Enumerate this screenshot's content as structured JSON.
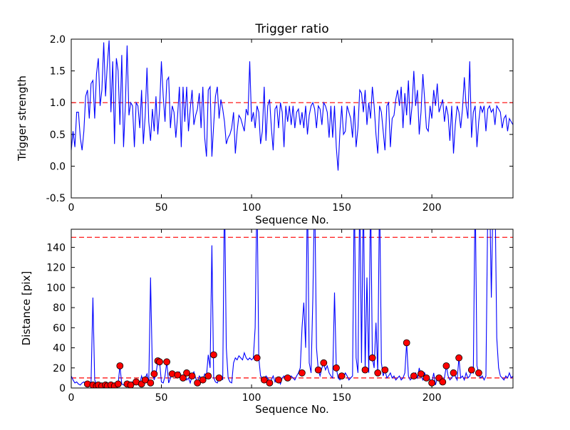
{
  "figure": {
    "background": "#ffffff",
    "frame_color": "#000000"
  },
  "chart_data": [
    {
      "type": "line",
      "title": "Trigger ratio",
      "xlabel": "Sequence No.",
      "ylabel": "Trigger strength",
      "xlim": [
        0,
        245
      ],
      "ylim": [
        -0.5,
        2.0
      ],
      "xticks": [
        0,
        50,
        100,
        150,
        200
      ],
      "xticklabels": [
        "0",
        "50",
        "100",
        "150",
        "200"
      ],
      "yticks": [
        -0.5,
        0.0,
        0.5,
        1.0,
        1.5,
        2.0
      ],
      "yticklabels": [
        "-0.5",
        "0.0",
        "0.5",
        "1.0",
        "1.5",
        "2.0"
      ],
      "grid": false,
      "legend": "none",
      "thresholds": [
        1.0
      ],
      "threshold_color": "#ff0000",
      "series": [
        {
          "name": "trigger-strength",
          "color": "#0000ff",
          "values": [
            0.25,
            0.55,
            0.3,
            0.85,
            0.85,
            0.45,
            0.25,
            0.55,
            1.1,
            1.2,
            0.75,
            1.3,
            1.35,
            0.75,
            1.45,
            1.7,
            0.95,
            1.2,
            1.95,
            1.1,
            1.6,
            1.98,
            0.85,
            1.65,
            0.35,
            1.7,
            1.5,
            0.65,
            1.75,
            0.3,
            0.95,
            1.9,
            0.8,
            1.0,
            0.95,
            0.3,
            1.0,
            0.95,
            0.6,
            1.2,
            0.35,
            0.8,
            1.55,
            0.7,
            0.4,
            0.9,
            0.55,
            1.1,
            0.5,
            0.9,
            1.65,
            1.1,
            0.7,
            1.35,
            1.4,
            0.6,
            0.95,
            0.85,
            0.45,
            0.8,
            1.25,
            0.3,
            1.25,
            0.7,
            1.25,
            0.55,
            0.9,
            1.2,
            0.65,
            0.8,
            0.9,
            1.15,
            0.6,
            1.25,
            0.45,
            0.15,
            1.2,
            1.25,
            0.15,
            0.65,
            1.1,
            1.25,
            0.75,
            1.05,
            0.9,
            0.7,
            0.35,
            0.45,
            0.5,
            0.6,
            0.85,
            0.2,
            0.55,
            0.8,
            0.75,
            0.65,
            0.55,
            0.9,
            0.8,
            1.65,
            0.7,
            0.85,
            0.6,
            0.95,
            0.85,
            0.35,
            0.55,
            1.25,
            0.4,
            0.95,
            1.05,
            0.6,
            0.25,
            0.9,
            0.95,
            0.6,
            1.0,
            0.85,
            0.3,
            0.95,
            0.7,
            0.95,
            0.65,
            0.95,
            0.6,
            0.85,
            0.9,
            0.65,
            0.85,
            0.6,
            0.95,
            0.5,
            0.8,
            0.95,
            1.0,
            0.9,
            0.6,
            0.95,
            0.9,
            0.65,
            1.0,
            0.95,
            0.85,
            0.45,
            0.95,
            0.45,
            0.95,
            0.3,
            -0.07,
            0.55,
            0.95,
            0.5,
            0.55,
            0.95,
            0.85,
            0.75,
            0.45,
            0.95,
            0.3,
            0.6,
            1.2,
            1.15,
            0.85,
            1.2,
            0.65,
            1.0,
            0.75,
            1.25,
            0.95,
            0.5,
            0.2,
            0.95,
            0.85,
            0.55,
            0.25,
            0.95,
            1.0,
            0.3,
            0.75,
            0.8,
            1.05,
            1.2,
            0.95,
            1.25,
            0.6,
            1.15,
            0.8,
            1.35,
            0.65,
            0.95,
            1.5,
            0.95,
            1.2,
            0.5,
            0.85,
            1.45,
            1.05,
            0.6,
            0.55,
            0.95,
            0.75,
            1.2,
            0.95,
            1.3,
            0.85,
            0.95,
            1.05,
            0.7,
            0.95,
            0.8,
            0.4,
            0.95,
            0.2,
            0.65,
            0.95,
            0.85,
            0.6,
            0.9,
            1.4,
            0.95,
            0.75,
            1.65,
            0.45,
            0.85,
            0.95,
            0.3,
            0.7,
            0.95,
            0.85,
            0.95,
            0.55,
            0.9,
            0.95,
            0.85,
            0.9,
            0.65,
            0.95,
            0.9,
            0.85,
            0.6,
            0.75,
            0.8,
            0.55,
            0.75,
            0.7,
            0.65
          ]
        }
      ]
    },
    {
      "type": "line",
      "title": "",
      "xlabel": "Sequence No.",
      "ylabel": "Distance [pix]",
      "xlim": [
        0,
        245
      ],
      "ylim": [
        0,
        158
      ],
      "xticks": [
        0,
        50,
        100,
        150,
        200
      ],
      "xticklabels": [
        "0",
        "50",
        "100",
        "150",
        "200"
      ],
      "yticks": [
        0,
        20,
        40,
        60,
        80,
        100,
        120,
        140
      ],
      "yticklabels": [
        "0",
        "20",
        "40",
        "60",
        "80",
        "100",
        "120",
        "140"
      ],
      "grid": false,
      "legend": "none",
      "thresholds": [
        150,
        10
      ],
      "threshold_color": "#ff0000",
      "series": [
        {
          "name": "distance",
          "color": "#0000ff",
          "values": [
            12,
            8,
            5,
            6,
            4,
            3,
            5,
            6,
            4,
            5,
            4,
            6,
            90,
            8,
            4,
            3,
            4,
            5,
            3,
            4,
            5,
            3,
            4,
            2,
            3,
            5,
            4,
            22,
            4,
            3,
            5,
            7,
            4,
            3,
            6,
            4,
            8,
            5,
            4,
            12,
            6,
            10,
            14,
            5,
            110,
            16,
            8,
            14,
            27,
            26,
            6,
            5,
            12,
            26,
            5,
            10,
            14,
            16,
            15,
            13,
            16,
            12,
            10,
            15,
            8,
            10,
            5,
            12,
            16,
            10,
            5,
            12,
            10,
            8,
            14,
            12,
            33,
            20,
            142,
            10,
            6,
            5,
            10,
            12,
            8,
            200,
            40,
            10,
            6,
            5,
            25,
            30,
            28,
            32,
            30,
            28,
            35,
            30,
            28,
            30,
            28,
            30,
            60,
            200,
            30,
            12,
            10,
            8,
            12,
            10,
            5,
            8,
            12,
            6,
            10,
            8,
            4,
            10,
            12,
            8,
            10,
            8,
            12,
            10,
            8,
            12,
            15,
            20,
            60,
            85,
            40,
            200,
            25,
            15,
            90,
            200,
            40,
            18,
            12,
            20,
            25,
            18,
            22,
            15,
            12,
            10,
            95,
            20,
            10,
            8,
            12,
            10,
            15,
            12,
            8,
            10,
            12,
            200,
            30,
            15,
            200,
            25,
            200,
            18,
            110,
            15,
            200,
            30,
            20,
            65,
            15,
            200,
            25,
            12,
            18,
            10,
            12,
            15,
            10,
            12,
            8,
            10,
            12,
            8,
            10,
            15,
            45,
            12,
            8,
            10,
            12,
            15,
            10,
            20,
            12,
            8,
            15,
            10,
            12,
            8,
            5,
            15,
            3,
            10,
            8,
            12,
            6,
            10,
            22,
            12,
            8,
            10,
            15,
            12,
            8,
            30,
            10,
            12,
            8,
            15,
            10,
            12,
            18,
            15,
            200,
            22,
            15,
            10,
            12,
            8,
            12,
            180,
            200,
            90,
            200,
            200,
            50,
            20,
            12,
            10,
            8,
            12,
            10,
            15,
            10,
            12
          ]
        }
      ],
      "scatter": {
        "name": "detected-events",
        "color": "#ff0000",
        "edge_color": "#000000",
        "points": [
          [
            9,
            4
          ],
          [
            12,
            3
          ],
          [
            14,
            2
          ],
          [
            15,
            3
          ],
          [
            17,
            2
          ],
          [
            19,
            3
          ],
          [
            20,
            2
          ],
          [
            22,
            3
          ],
          [
            24,
            2
          ],
          [
            26,
            4
          ],
          [
            27,
            22
          ],
          [
            31,
            4
          ],
          [
            33,
            3
          ],
          [
            36,
            6
          ],
          [
            39,
            4
          ],
          [
            41,
            8
          ],
          [
            44,
            5
          ],
          [
            46,
            14
          ],
          [
            48,
            27
          ],
          [
            49,
            26
          ],
          [
            53,
            26
          ],
          [
            56,
            14
          ],
          [
            59,
            13
          ],
          [
            62,
            10
          ],
          [
            64,
            15
          ],
          [
            67,
            12
          ],
          [
            70,
            5
          ],
          [
            73,
            8
          ],
          [
            76,
            12
          ],
          [
            79,
            33
          ],
          [
            82,
            10
          ],
          [
            103,
            30
          ],
          [
            107,
            8
          ],
          [
            110,
            5
          ],
          [
            115,
            8
          ],
          [
            120,
            10
          ],
          [
            128,
            15
          ],
          [
            137,
            18
          ],
          [
            140,
            25
          ],
          [
            147,
            20
          ],
          [
            150,
            12
          ],
          [
            163,
            18
          ],
          [
            167,
            30
          ],
          [
            170,
            15
          ],
          [
            174,
            18
          ],
          [
            186,
            45
          ],
          [
            190,
            12
          ],
          [
            194,
            14
          ],
          [
            197,
            10
          ],
          [
            200,
            5
          ],
          [
            204,
            10
          ],
          [
            206,
            6
          ],
          [
            208,
            22
          ],
          [
            212,
            15
          ],
          [
            215,
            30
          ],
          [
            222,
            18
          ],
          [
            226,
            15
          ]
        ]
      }
    }
  ]
}
